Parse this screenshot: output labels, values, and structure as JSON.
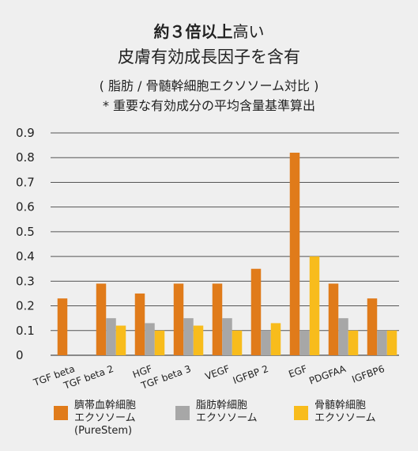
{
  "header": {
    "title_bold": "約３倍以上",
    "title_rest": "高い",
    "title_line2": "皮膚有効成長因子を含有",
    "subtitle_line1": "( 脂肪 / 骨髄幹細胞エクソソーム対比 )",
    "subtitle_line2": "* 重要な有効成分の平均含量基準算出"
  },
  "chart_data": {
    "type": "bar",
    "categories": [
      "TGF beta",
      "TGF beta 2",
      "HGF",
      "TGF beta 3",
      "VEGF",
      "IGFBP 2",
      "EGF",
      "PDGFAA",
      "IGFBP6"
    ],
    "series": [
      {
        "name": "臍帯血幹細胞 エクソソーム (PureStem)",
        "color": "#e07b1a",
        "values": [
          0.23,
          0.29,
          0.25,
          0.29,
          0.29,
          0.35,
          0.82,
          0.29,
          0.23
        ]
      },
      {
        "name": "脂肪幹細胞 エクソソーム",
        "color": "#a7a7a7",
        "values": [
          null,
          0.15,
          0.13,
          0.15,
          0.15,
          0.1,
          0.1,
          0.15,
          0.1
        ]
      },
      {
        "name": "骨髄幹細胞 エクソソーム",
        "color": "#f8bc1c",
        "values": [
          null,
          0.12,
          0.1,
          0.12,
          0.1,
          0.13,
          0.4,
          0.1,
          0.1
        ]
      }
    ],
    "ylim": [
      0,
      0.9
    ],
    "yticks": [
      "0",
      "0.1",
      "0.2",
      "0.3",
      "0.4",
      "0.5",
      "0.6",
      "0.7",
      "0.8",
      "0.9"
    ],
    "grid": true,
    "legend_position": "bottom"
  },
  "legend": [
    {
      "lines": [
        "臍帯血幹細胞",
        "エクソソーム",
        "(PureStem)"
      ],
      "color": "#e07b1a"
    },
    {
      "lines": [
        "脂肪幹細胞",
        "エクソソーム"
      ],
      "color": "#a7a7a7"
    },
    {
      "lines": [
        "骨髄幹細胞",
        "エクソソーム"
      ],
      "color": "#f8bc1c"
    }
  ]
}
